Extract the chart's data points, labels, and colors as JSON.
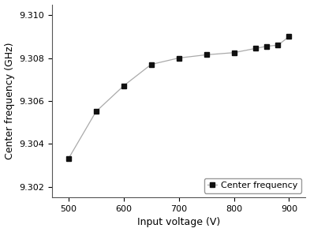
{
  "x": [
    500,
    550,
    600,
    650,
    700,
    750,
    800,
    840,
    860,
    880,
    900
  ],
  "y": [
    9.3033,
    9.3055,
    9.3067,
    9.3077,
    9.308,
    9.30815,
    9.30825,
    9.30845,
    9.30855,
    9.3086,
    9.309
  ],
  "title": "",
  "xlabel": "Input voltage (V)",
  "ylabel": "Center frequency (GHz)",
  "xlim": [
    470,
    930
  ],
  "ylim": [
    9.3015,
    9.3105
  ],
  "xticks": [
    500,
    600,
    700,
    800,
    900
  ],
  "yticks": [
    9.302,
    9.304,
    9.306,
    9.308,
    9.31
  ],
  "legend_label": "Center frequency",
  "line_color": "#aaaaaa",
  "marker_color": "#111111",
  "marker_style": "s",
  "marker_size": 4.5,
  "line_width": 0.9,
  "bg_color": "#ffffff",
  "spine_color": "#555555",
  "tick_labelsize": 8,
  "axis_labelsize": 9
}
